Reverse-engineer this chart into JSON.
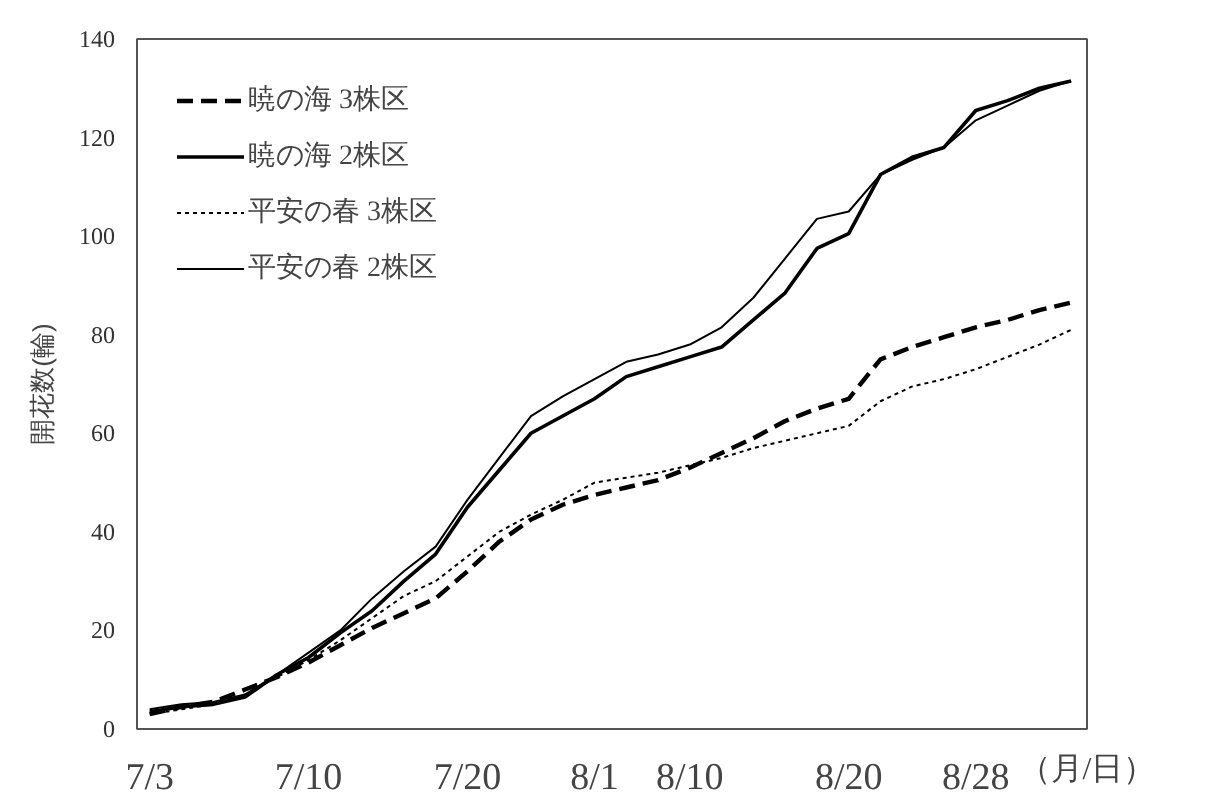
{
  "chart_data": {
    "type": "line",
    "ylabel": "開花数(輪)",
    "xlabel": "（月/日）",
    "categories": [
      "7/3",
      null,
      null,
      null,
      null,
      "7/10",
      null,
      null,
      null,
      null,
      "7/20",
      null,
      null,
      null,
      "8/1",
      null,
      null,
      "8/10",
      null,
      null,
      null,
      null,
      "8/20",
      null,
      null,
      null,
      "8/28",
      null,
      null,
      null
    ],
    "series": [
      {
        "name": "暁の海 3株区",
        "color": "#000000",
        "line_style": "dashed",
        "values": [
          3,
          4.5,
          5.5,
          8,
          10.5,
          13.5,
          17,
          20.5,
          23.5,
          26.5,
          32,
          38,
          42.5,
          45.5,
          47.5,
          49,
          50.5,
          53,
          56,
          59,
          62.5,
          65,
          67,
          75,
          77.5,
          79.5,
          81.5,
          83,
          85,
          86.5
        ]
      },
      {
        "name": "暁の海 2株区",
        "color": "#000000",
        "line_style": "solid",
        "values": [
          3.5,
          4.5,
          5,
          6.5,
          11,
          14.5,
          19.5,
          24,
          30,
          35.5,
          45,
          52.5,
          60,
          63.5,
          67,
          71.5,
          73.5,
          75.5,
          77.5,
          83,
          88.5,
          97.5,
          100.5,
          112.5,
          116,
          118,
          125.5,
          127.5,
          130,
          131.5
        ]
      },
      {
        "name": "平安の春 3株区",
        "color": "#000000",
        "line_style": "dotted",
        "values": [
          3,
          4,
          5,
          7,
          10.5,
          14,
          18,
          22.5,
          27,
          30,
          35,
          40,
          43.5,
          46.5,
          50,
          51,
          52,
          53.5,
          55,
          57,
          58.5,
          60,
          61.5,
          66.5,
          69.5,
          71,
          73,
          75.5,
          78,
          81
        ]
      },
      {
        "name": "平安の春 2株区",
        "color": "#000000",
        "line_style": "solid",
        "values": [
          4,
          5,
          5.5,
          7,
          11,
          15.5,
          20,
          26.5,
          32,
          37,
          46.5,
          55,
          63.5,
          67.5,
          71,
          74.5,
          76,
          78,
          81.5,
          87.5,
          95.5,
          103.5,
          105,
          112.5,
          115.5,
          118,
          123.5,
          126.5,
          129.5,
          131.5
        ]
      }
    ],
    "ylim": [
      0,
      140
    ],
    "yticks": [
      0,
      20,
      40,
      60,
      80,
      100,
      120,
      140
    ],
    "grid": false,
    "legend": "top left",
    "marker": "none"
  }
}
